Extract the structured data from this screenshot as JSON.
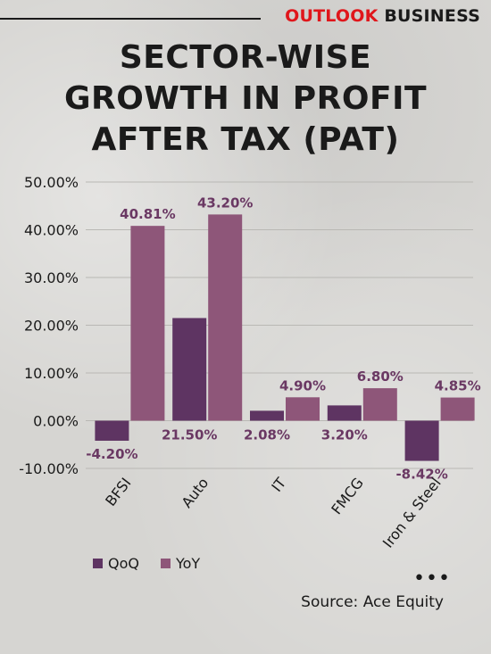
{
  "brand": {
    "outlook": "OUTLOOK",
    "business": "BUSINESS"
  },
  "title_lines": [
    "SECTOR-WISE",
    "GROWTH IN PROFIT",
    "AFTER TAX (PAT)"
  ],
  "source": "Source: Ace Equity",
  "more": "•••",
  "colors": {
    "qoq": "#5e3462",
    "yoy": "#8e5679",
    "label": "#6a3863"
  },
  "legend": [
    {
      "name": "QoQ",
      "color": "#5e3462"
    },
    {
      "name": "YoY",
      "color": "#8e5679"
    }
  ],
  "chart_data": {
    "type": "bar",
    "categories": [
      "BFSI",
      "Auto",
      "IT",
      "FMCG",
      "Iron & Steel"
    ],
    "series": [
      {
        "name": "QoQ",
        "values": [
          -4.2,
          21.5,
          2.08,
          3.2,
          -8.42
        ],
        "labels": [
          "-4.20%",
          "21.50%",
          "2.08%",
          "3.20%",
          "-8.42%"
        ]
      },
      {
        "name": "YoY",
        "values": [
          40.81,
          43.2,
          4.9,
          6.8,
          4.85
        ],
        "labels": [
          "40.81%",
          "43.20%",
          "4.90%",
          "6.80%",
          "4.85%"
        ]
      }
    ],
    "ylim": [
      -10,
      50
    ],
    "yticks": [
      -10,
      0,
      10,
      20,
      30,
      40,
      50
    ],
    "ytick_labels": [
      "-10.00%",
      "0.00%",
      "10.00%",
      "20.00%",
      "30.00%",
      "40.00%",
      "50.00%"
    ],
    "grid": true,
    "legend_position": "bottom-left"
  }
}
